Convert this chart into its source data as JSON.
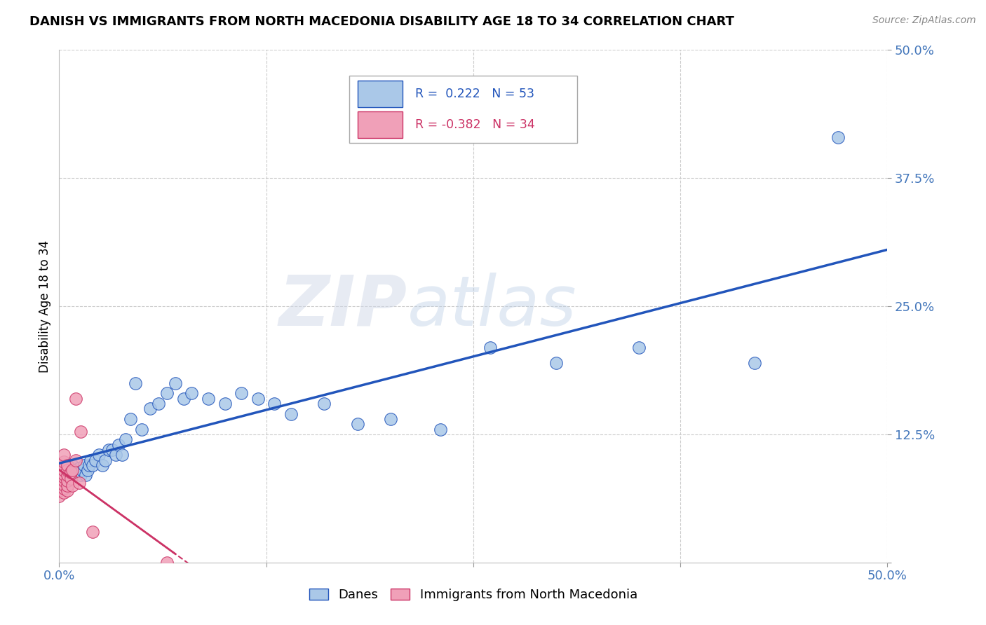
{
  "title": "DANISH VS IMMIGRANTS FROM NORTH MACEDONIA DISABILITY AGE 18 TO 34 CORRELATION CHART",
  "source": "Source: ZipAtlas.com",
  "ylabel": "Disability Age 18 to 34",
  "xlim": [
    0.0,
    0.5
  ],
  "ylim": [
    0.0,
    0.5
  ],
  "danes_R": 0.222,
  "danes_N": 53,
  "immig_R": -0.382,
  "immig_N": 34,
  "danes_color": "#aac8e8",
  "danes_line_color": "#2255bb",
  "immig_color": "#f0a0b8",
  "immig_line_color": "#cc3366",
  "watermark_zip": "ZIP",
  "watermark_atlas": "atlas",
  "grid_color": "#cccccc",
  "bg_color": "#ffffff",
  "danes_x": [
    0.002,
    0.003,
    0.004,
    0.005,
    0.006,
    0.007,
    0.008,
    0.009,
    0.01,
    0.011,
    0.012,
    0.013,
    0.014,
    0.015,
    0.016,
    0.017,
    0.018,
    0.019,
    0.02,
    0.022,
    0.024,
    0.026,
    0.028,
    0.03,
    0.032,
    0.034,
    0.036,
    0.038,
    0.04,
    0.043,
    0.046,
    0.05,
    0.055,
    0.06,
    0.065,
    0.07,
    0.075,
    0.08,
    0.09,
    0.1,
    0.11,
    0.12,
    0.13,
    0.14,
    0.16,
    0.18,
    0.2,
    0.23,
    0.26,
    0.3,
    0.35,
    0.42,
    0.47
  ],
  "danes_y": [
    0.09,
    0.085,
    0.09,
    0.092,
    0.088,
    0.092,
    0.095,
    0.088,
    0.09,
    0.088,
    0.092,
    0.085,
    0.09,
    0.095,
    0.085,
    0.09,
    0.095,
    0.1,
    0.095,
    0.1,
    0.105,
    0.095,
    0.1,
    0.11,
    0.11,
    0.105,
    0.115,
    0.105,
    0.12,
    0.14,
    0.175,
    0.13,
    0.15,
    0.155,
    0.165,
    0.175,
    0.16,
    0.165,
    0.16,
    0.155,
    0.165,
    0.16,
    0.155,
    0.145,
    0.155,
    0.135,
    0.14,
    0.13,
    0.21,
    0.195,
    0.21,
    0.195,
    0.415
  ],
  "immig_x": [
    0.0,
    0.0,
    0.0,
    0.0,
    0.0,
    0.0,
    0.0,
    0.0,
    0.003,
    0.003,
    0.003,
    0.003,
    0.003,
    0.003,
    0.003,
    0.003,
    0.003,
    0.003,
    0.005,
    0.005,
    0.005,
    0.005,
    0.005,
    0.005,
    0.007,
    0.007,
    0.008,
    0.008,
    0.01,
    0.01,
    0.012,
    0.013,
    0.065,
    0.02
  ],
  "immig_y": [
    0.065,
    0.07,
    0.075,
    0.078,
    0.082,
    0.085,
    0.09,
    0.095,
    0.068,
    0.072,
    0.076,
    0.08,
    0.083,
    0.086,
    0.09,
    0.094,
    0.098,
    0.105,
    0.07,
    0.075,
    0.08,
    0.085,
    0.09,
    0.095,
    0.082,
    0.088,
    0.075,
    0.09,
    0.1,
    0.16,
    0.078,
    0.128,
    0.0,
    0.03
  ]
}
